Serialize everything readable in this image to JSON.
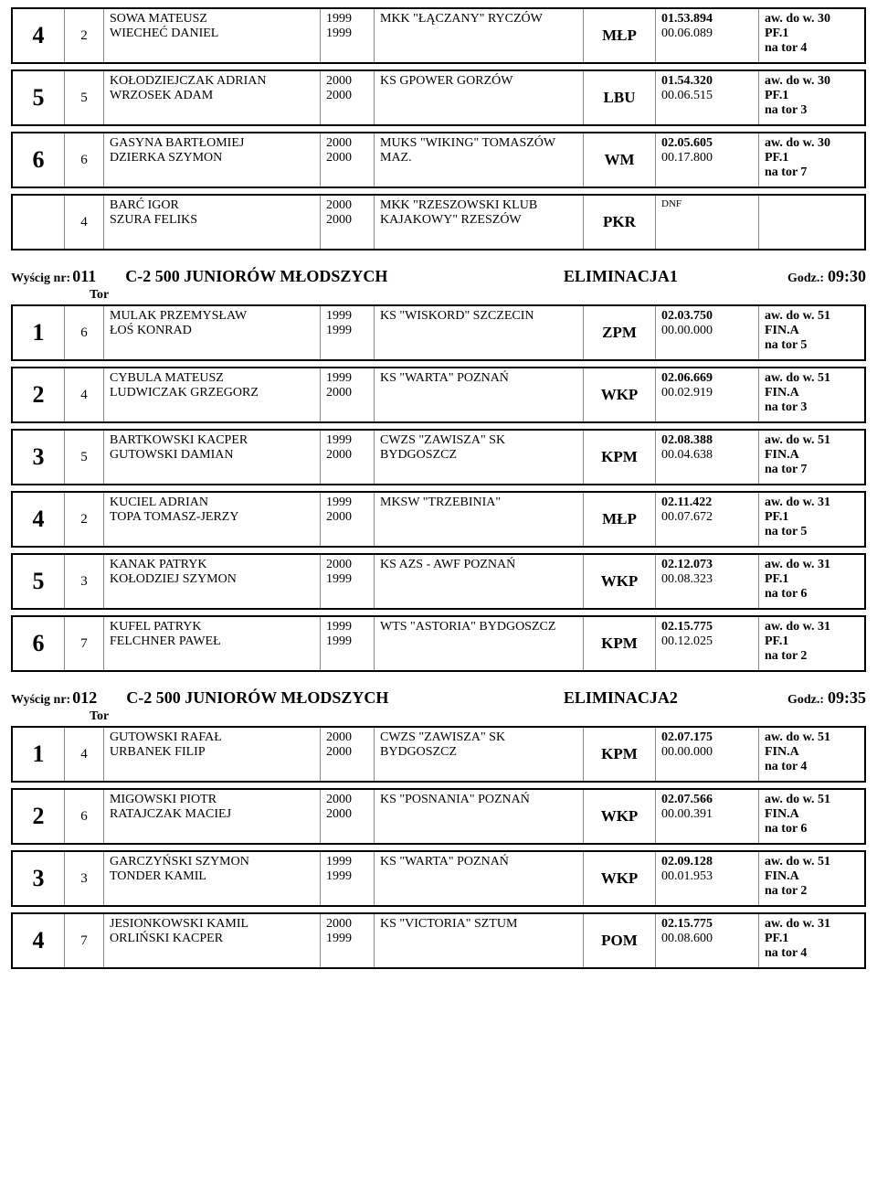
{
  "topRows": [
    {
      "place": "4",
      "lane": "2",
      "name1": "SOWA MATEUSZ",
      "name2": "WIECHEĆ DANIEL",
      "year1": "1999",
      "year2": "1999",
      "club": "MKK \"ŁĄCZANY\" RYCZÓW",
      "region": "MŁP",
      "time1": "01.53.894",
      "time2": "00.06.089",
      "note1": "aw. do w. 30",
      "note2": "PF.1",
      "note3": "na tor 4"
    },
    {
      "place": "5",
      "lane": "5",
      "name1": "KOŁODZIEJCZAK ADRIAN",
      "name2": "WRZOSEK ADAM",
      "year1": "2000",
      "year2": "2000",
      "club": "KS GPOWER GORZÓW",
      "region": "LBU",
      "time1": "01.54.320",
      "time2": "00.06.515",
      "note1": "aw. do w. 30",
      "note2": "PF.1",
      "note3": "na tor 3"
    },
    {
      "place": "6",
      "lane": "6",
      "name1": "GASYNA  BARTŁOMIEJ",
      "name2": "DZIERKA SZYMON",
      "year1": "2000",
      "year2": "2000",
      "club": "MUKS \"WIKING\" TOMASZÓW MAZ.",
      "region": "WM",
      "time1": "02.05.605",
      "time2": "00.17.800",
      "note1": "aw. do w. 30",
      "note2": "PF.1",
      "note3": "na tor 7"
    },
    {
      "place": "",
      "lane": "4",
      "name1": "BARĆ IGOR",
      "name2": "SZURA FELIKS",
      "year1": "2000",
      "year2": "2000",
      "club": "MKK \"RZESZOWSKI KLUB KAJAKOWY\" RZESZÓW",
      "region": "PKR",
      "time1": "",
      "time2": "",
      "dnf": "DNF",
      "note1": "",
      "note2": "",
      "note3": ""
    }
  ],
  "heats": [
    {
      "num": "011",
      "event": "C-2   500    JUNIORÓW MŁODSZYCH",
      "phase": "ELIMINACJA1",
      "time": "09:30",
      "tor": "Tor",
      "rows": [
        {
          "place": "1",
          "lane": "6",
          "name1": "MULAK PRZEMYSŁAW",
          "name2": "ŁOŚ KONRAD",
          "year1": "1999",
          "year2": "1999",
          "club": "KS \"WISKORD\" SZCZECIN",
          "region": "ZPM",
          "time1": "02.03.750",
          "time2": "00.00.000",
          "note1": "aw. do w. 51",
          "note2": "FIN.A",
          "note3": "na tor 5"
        },
        {
          "place": "2",
          "lane": "4",
          "name1": "CYBULA MATEUSZ",
          "name2": "LUDWICZAK GRZEGORZ",
          "year1": "1999",
          "year2": "2000",
          "club": "KS \"WARTA\" POZNAŃ",
          "region": "WKP",
          "time1": "02.06.669",
          "time2": "00.02.919",
          "note1": "aw. do w. 51",
          "note2": "FIN.A",
          "note3": "na tor 3"
        },
        {
          "place": "3",
          "lane": "5",
          "name1": "BARTKOWSKI KACPER",
          "name2": "GUTOWSKI DAMIAN",
          "year1": "1999",
          "year2": "2000",
          "club": "CWZS \"ZAWISZA\" SK BYDGOSZCZ",
          "region": "KPM",
          "time1": "02.08.388",
          "time2": "00.04.638",
          "note1": "aw. do w. 51",
          "note2": "FIN.A",
          "note3": "na tor 7"
        },
        {
          "place": "4",
          "lane": "2",
          "name1": "KUCIEL ADRIAN",
          "name2": "TOPA TOMASZ-JERZY",
          "year1": "1999",
          "year2": "2000",
          "club": "MKSW \"TRZEBINIA\"",
          "region": "MŁP",
          "time1": "02.11.422",
          "time2": "00.07.672",
          "note1": "aw. do w. 31",
          "note2": "PF.1",
          "note3": "na tor 5"
        },
        {
          "place": "5",
          "lane": "3",
          "name1": "KANAK PATRYK",
          "name2": "KOŁODZIEJ SZYMON",
          "year1": "2000",
          "year2": "1999",
          "club": "KS AZS - AWF POZNAŃ",
          "region": "WKP",
          "time1": "02.12.073",
          "time2": "00.08.323",
          "note1": "aw. do w. 31",
          "note2": "PF.1",
          "note3": "na tor 6"
        },
        {
          "place": "6",
          "lane": "7",
          "name1": "KUFEL PATRYK",
          "name2": "FELCHNER PAWEŁ",
          "year1": "1999",
          "year2": "1999",
          "club": "WTS \"ASTORIA\" BYDGOSZCZ",
          "region": "KPM",
          "time1": "02.15.775",
          "time2": "00.12.025",
          "note1": "aw. do w. 31",
          "note2": "PF.1",
          "note3": "na tor 2"
        }
      ]
    },
    {
      "num": "012",
      "event": "C-2   500    JUNIORÓW MŁODSZYCH",
      "phase": "ELIMINACJA2",
      "time": "09:35",
      "tor": "Tor",
      "rows": [
        {
          "place": "1",
          "lane": "4",
          "name1": "GUTOWSKI RAFAŁ",
          "name2": "URBANEK FILIP",
          "year1": "2000",
          "year2": "2000",
          "club": "CWZS \"ZAWISZA\" SK BYDGOSZCZ",
          "region": "KPM",
          "time1": "02.07.175",
          "time2": "00.00.000",
          "note1": "aw. do w. 51",
          "note2": "FIN.A",
          "note3": "na tor 4"
        },
        {
          "place": "2",
          "lane": "6",
          "name1": "MIGOWSKI PIOTR",
          "name2": "RATAJCZAK MACIEJ",
          "year1": "2000",
          "year2": "2000",
          "club": "KS \"POSNANIA\" POZNAŃ",
          "region": "WKP",
          "time1": "02.07.566",
          "time2": "00.00.391",
          "note1": "aw. do w. 51",
          "note2": "FIN.A",
          "note3": "na tor 6"
        },
        {
          "place": "3",
          "lane": "3",
          "name1": "GARCZYŃSKI SZYMON",
          "name2": "TONDER KAMIL",
          "year1": "1999",
          "year2": "1999",
          "club": "KS \"WARTA\" POZNAŃ",
          "region": "WKP",
          "time1": "02.09.128",
          "time2": "00.01.953",
          "note1": "aw. do w. 51",
          "note2": "FIN.A",
          "note3": "na tor 2"
        },
        {
          "place": "4",
          "lane": "7",
          "name1": "JESIONKOWSKI KAMIL",
          "name2": "ORLIŃSKI KACPER",
          "year1": "2000",
          "year2": "1999",
          "club": "KS \"VICTORIA\" SZTUM",
          "region": "POM",
          "time1": "02.15.775",
          "time2": "00.08.600",
          "note1": "aw. do w. 31",
          "note2": "PF.1",
          "note3": "na tor 4"
        }
      ]
    }
  ],
  "labels": {
    "wyscig": "Wyścig nr:",
    "godz": "Godz.:"
  }
}
